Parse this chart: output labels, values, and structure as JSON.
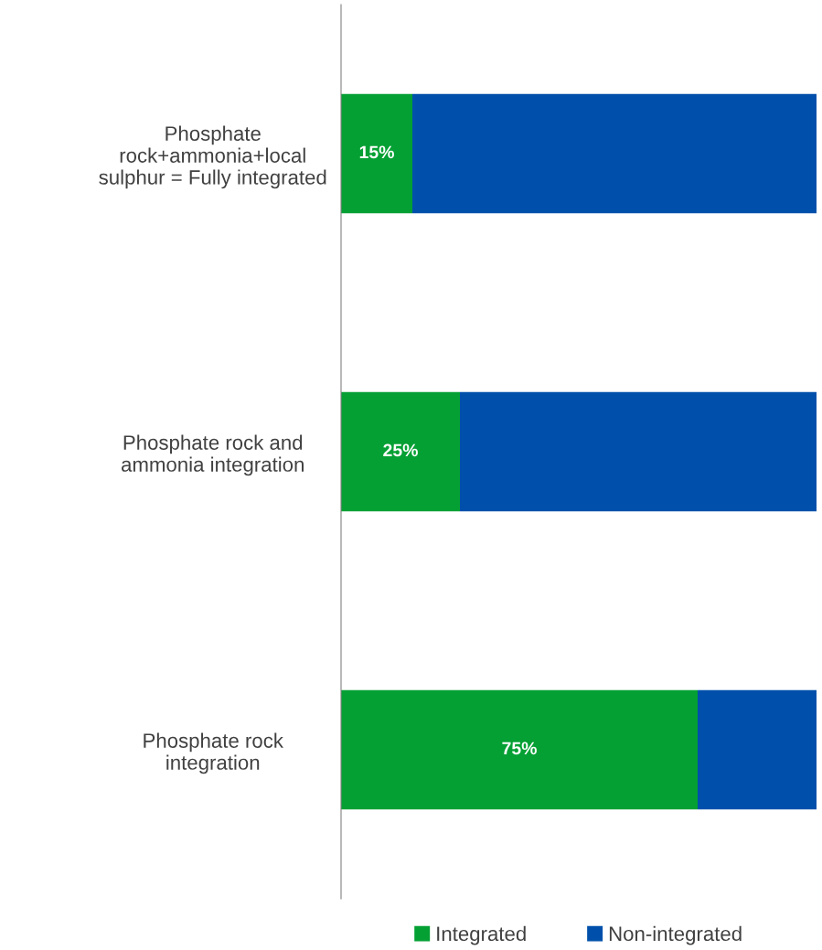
{
  "chart_data": {
    "type": "bar",
    "orientation": "horizontal",
    "stacked": true,
    "categories": [
      "Phosphate\nrock+ammonia+local\nsulphur = Fully integrated",
      "Phosphate rock and\nammonia integration",
      "Phosphate rock\nintegration"
    ],
    "series": [
      {
        "name": "Integrated",
        "color": "#05a034",
        "values": [
          15,
          25,
          75
        ],
        "value_labels": [
          "15%",
          "25%",
          "75%"
        ]
      },
      {
        "name": "Non-integrated",
        "color": "#0050ab",
        "values": [
          85,
          75,
          25
        ]
      }
    ],
    "xlim": [
      0,
      100
    ],
    "tick_labels": "y",
    "legend": "bottom"
  }
}
